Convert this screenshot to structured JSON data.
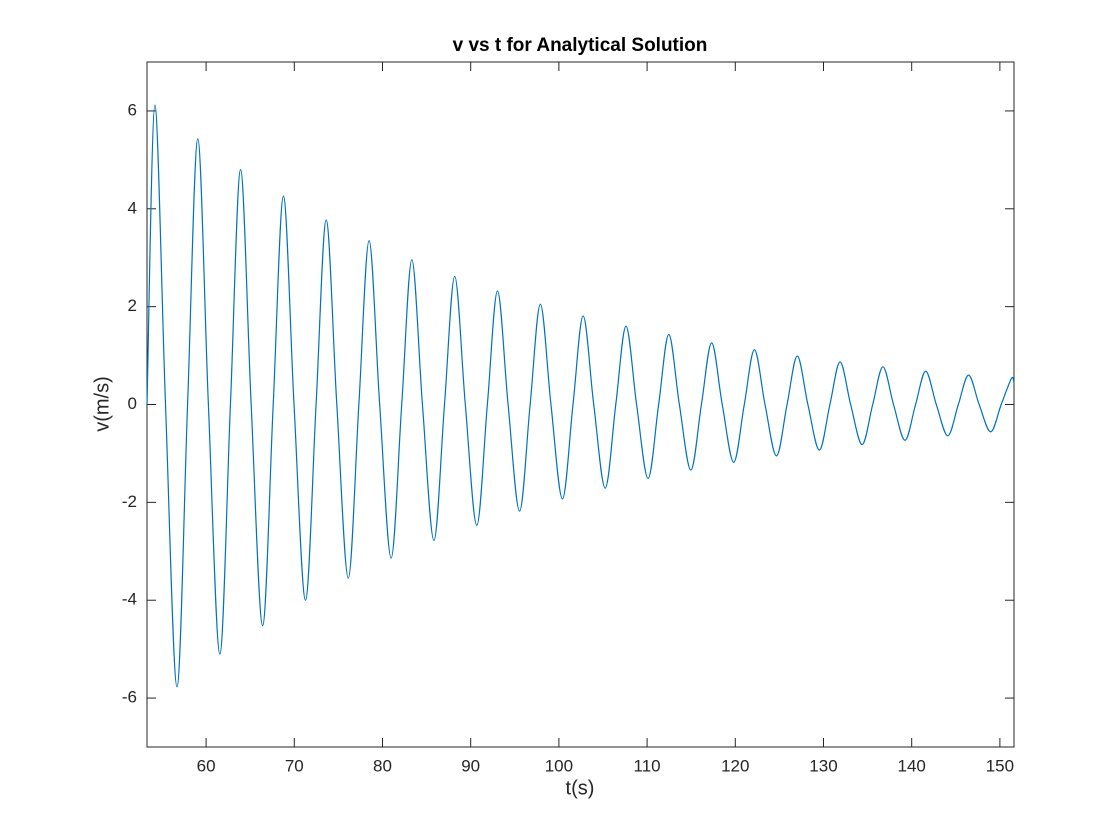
{
  "chart_data": {
    "type": "line",
    "title": "v vs t for Analytical Solution",
    "xlabel": "t(s)",
    "ylabel": "v(m/s)",
    "color": "#0072bd",
    "x": [
      53.3,
      54.2,
      55.4,
      56.7,
      57.9,
      59.06,
      60.26,
      61.56,
      62.76,
      63.91,
      65.11,
      66.41,
      67.61,
      68.77,
      69.97,
      71.27,
      72.47,
      73.62,
      74.82,
      76.12,
      77.32,
      78.48,
      79.68,
      80.98,
      82.18,
      83.33,
      84.53,
      85.83,
      87.03,
      88.19,
      89.39,
      90.69,
      91.89,
      93.04,
      94.24,
      95.54,
      96.74,
      97.9,
      99.1,
      100.4,
      101.6,
      102.75,
      103.95,
      105.25,
      106.45,
      107.61,
      108.81,
      110.11,
      111.31,
      112.46,
      113.66,
      114.96,
      116.16,
      117.32,
      118.52,
      119.82,
      121.02,
      122.17,
      123.37,
      124.67,
      125.87,
      127.03,
      128.23,
      129.53,
      130.73,
      131.88,
      133.08,
      134.38,
      135.58,
      136.74,
      137.94,
      139.24,
      140.44,
      141.59,
      142.79,
      144.09,
      145.29,
      146.45,
      147.65,
      148.95,
      150.15,
      151.3,
      151.6
    ],
    "values": [
      0,
      6.12,
      0,
      -5.77,
      0,
      5.43,
      0,
      -5.1,
      0,
      4.8,
      0,
      -4.52,
      0,
      4.26,
      0,
      -4.0,
      0,
      3.77,
      0,
      -3.55,
      0,
      3.35,
      0,
      -3.14,
      0,
      2.96,
      0,
      -2.78,
      0,
      2.62,
      0,
      -2.47,
      0,
      2.32,
      0,
      -2.18,
      0,
      2.05,
      0,
      -1.93,
      0,
      1.81,
      0,
      -1.71,
      0,
      1.6,
      0,
      -1.51,
      0,
      1.43,
      0,
      -1.34,
      0,
      1.26,
      0,
      -1.18,
      0,
      1.12,
      0,
      -1.05,
      0,
      0.99,
      0,
      -0.93,
      0,
      0.87,
      0,
      -0.82,
      0,
      0.77,
      0,
      -0.73,
      0,
      0.68,
      0,
      -0.64,
      0,
      0.6,
      0,
      -0.56,
      0,
      0.53,
      0.45
    ],
    "xlim": [
      53.3,
      151.6
    ],
    "ylim": [
      -7,
      7
    ],
    "xticks": [
      60,
      70,
      80,
      90,
      100,
      110,
      120,
      130,
      140,
      150
    ],
    "yticks": [
      -6,
      -4,
      -2,
      0,
      2,
      4,
      6
    ],
    "grid": false
  }
}
